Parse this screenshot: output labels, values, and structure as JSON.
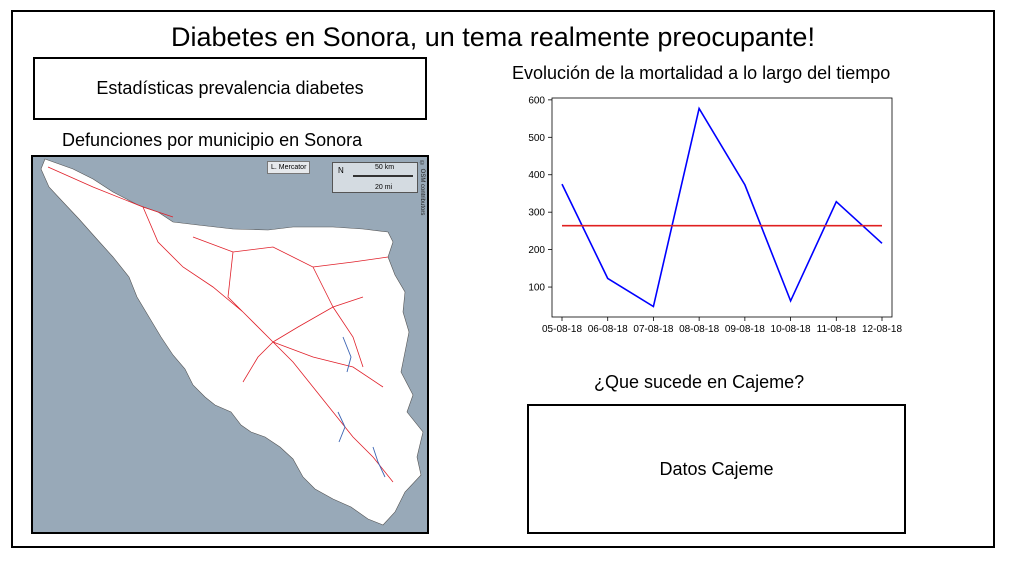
{
  "page": {
    "title": "Diabetes en Sonora, un tema realmente preocupante!",
    "stats_button": "Estadísticas prevalencia diabetes",
    "map_title": "Defunciones por municipio en Sonora",
    "chart_title": "Evolución de la mortalidad a lo largo del tiempo",
    "cajeme_question": "¿Que sucede en Cajeme?",
    "cajeme_button": "Datos Cajeme"
  },
  "map": {
    "layer_control": "L. Mercator",
    "scale_km": "50 km",
    "scale_mi": "20 mi",
    "north": "N",
    "side_text": "© OSM contributors",
    "colors": {
      "water": "#98a9b8",
      "land": "#ffffff",
      "roads": "#e0202a",
      "rivers": "#3b63b3"
    }
  },
  "chart_data": {
    "type": "line",
    "categories": [
      "05-08-18",
      "06-08-18",
      "07-08-18",
      "08-08-18",
      "09-08-18",
      "10-08-18",
      "11-08-18",
      "12-08-18"
    ],
    "series": [
      {
        "values": [
          375,
          123,
          48,
          577,
          373,
          63,
          328,
          217
        ],
        "color": "#0000ff"
      },
      {
        "values": [
          264,
          264,
          264,
          264,
          264,
          264,
          264,
          264
        ],
        "color": "#e02020"
      }
    ],
    "yticks": [
      100,
      200,
      300,
      400,
      500,
      600
    ],
    "ylim": [
      20,
      605
    ],
    "title": "Evolución de la mortalidad a lo largo del tiempo",
    "xlabel": "",
    "ylabel": "",
    "grid": false
  }
}
